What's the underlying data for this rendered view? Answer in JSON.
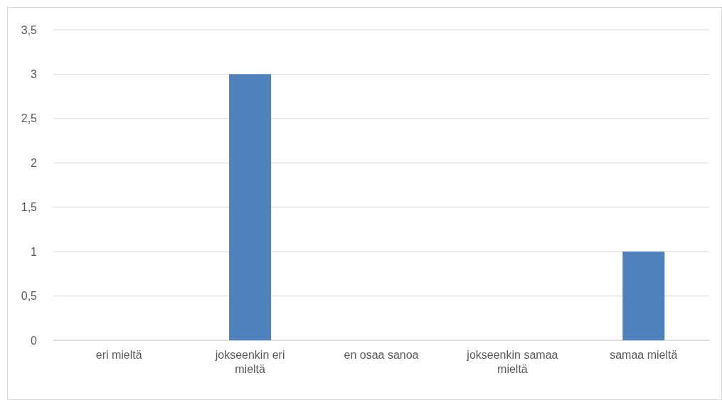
{
  "chart_data": {
    "type": "bar",
    "categories": [
      "eri mieltä",
      "jokseenkin eri mieltä",
      "en osaa sanoa",
      "jokseenkin samaa mieltä",
      "samaa mieltä"
    ],
    "values": [
      0,
      3,
      0,
      0,
      1
    ],
    "color": "#4f81bd",
    "ylim": [
      0,
      3.5
    ],
    "yticks": [
      0,
      {
        "value": 0.5,
        "label": "0,5"
      },
      1,
      {
        "value": 1.5,
        "label": "1,5"
      },
      2,
      {
        "value": 2.5,
        "label": "2,5"
      },
      3,
      {
        "value": 3.5,
        "label": "3,5"
      }
    ],
    "grid": "y"
  }
}
